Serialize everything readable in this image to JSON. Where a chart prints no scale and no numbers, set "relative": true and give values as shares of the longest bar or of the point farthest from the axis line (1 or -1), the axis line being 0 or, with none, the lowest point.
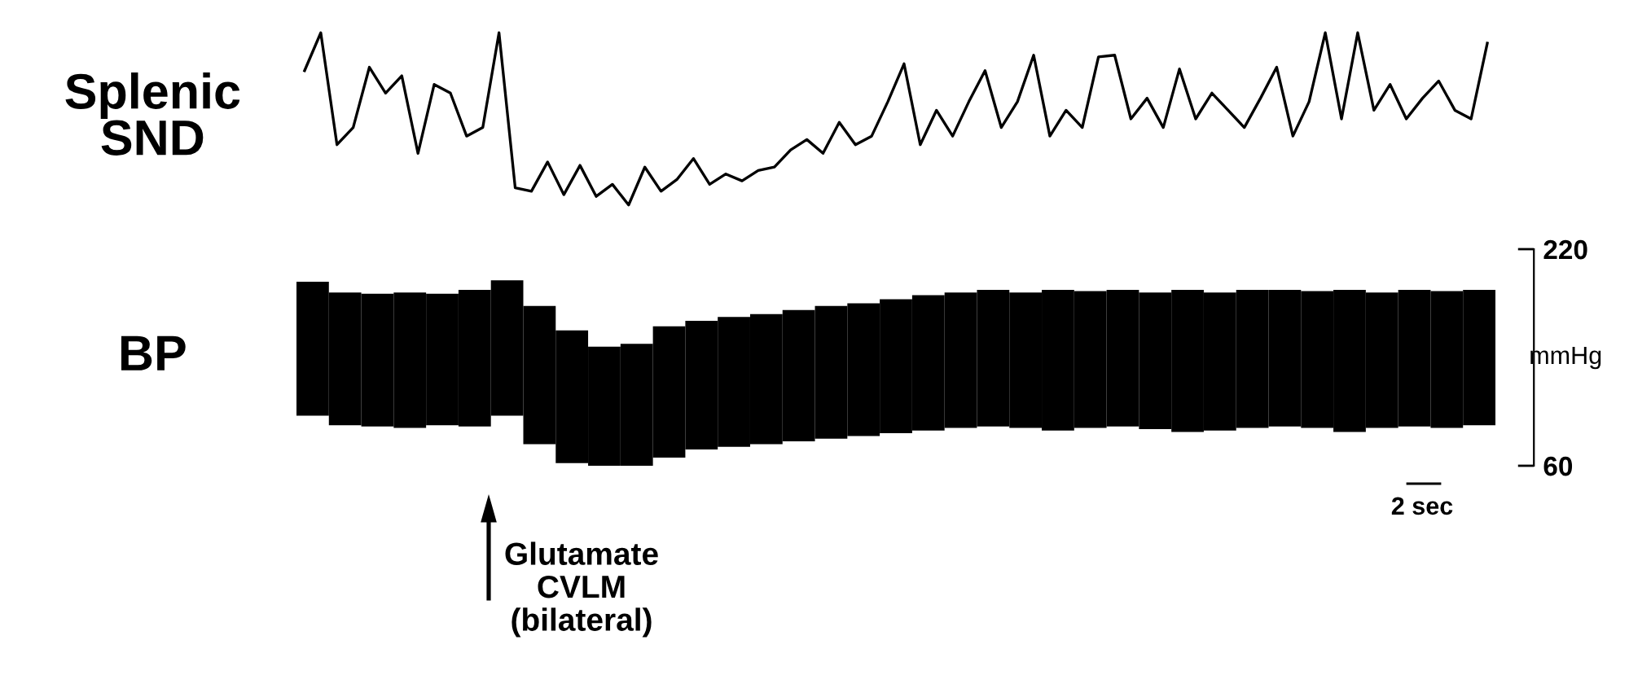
{
  "chart_data": [
    {
      "type": "line",
      "title": "Splenic\nSND",
      "relative": true,
      "tick_labels": false,
      "grid": false,
      "legend": false,
      "categories": [
        null,
        null,
        null,
        null,
        null,
        null,
        null,
        null,
        null,
        null,
        null,
        null,
        null,
        null,
        null,
        null,
        null,
        null,
        null,
        null,
        null,
        null,
        null,
        null,
        null,
        null,
        null,
        null,
        null,
        null,
        null,
        null,
        null,
        null,
        null,
        null,
        null,
        null,
        null,
        null,
        null,
        null,
        null,
        null,
        null,
        null,
        null,
        null,
        null,
        null,
        null,
        null,
        null,
        null,
        null,
        null,
        null,
        null,
        null,
        null,
        null,
        null,
        null,
        null,
        null,
        null,
        null,
        null,
        null,
        null,
        null,
        null,
        null,
        null
      ],
      "series": [
        {
          "color": "#000000",
          "values": [
            0.78,
            1.0,
            0.35,
            0.45,
            0.8,
            0.65,
            0.75,
            0.3,
            0.7,
            0.65,
            0.4,
            0.45,
            1.0,
            0.1,
            0.08,
            0.25,
            0.06,
            0.23,
            0.05,
            0.12,
            0.0,
            0.22,
            0.08,
            0.15,
            0.27,
            0.12,
            0.18,
            0.14,
            0.2,
            0.22,
            0.32,
            0.38,
            0.3,
            0.48,
            0.35,
            0.4,
            0.6,
            0.82,
            0.35,
            0.55,
            0.4,
            0.6,
            0.78,
            0.45,
            0.6,
            0.87,
            0.4,
            0.55,
            0.45,
            0.86,
            0.87,
            0.5,
            0.62,
            0.45,
            0.79,
            0.5,
            0.65,
            0.55,
            0.45,
            0.62,
            0.8,
            0.4,
            0.6,
            1.0,
            0.5,
            1.0,
            0.55,
            0.7,
            0.5,
            0.62,
            0.72,
            0.55,
            0.5,
            0.94
          ]
        }
      ]
    },
    {
      "type": "bar",
      "title": "BP",
      "ylabel": "mmHg",
      "ylim": [
        60,
        220
      ],
      "yticks": [
        60,
        220
      ],
      "tick_labels": "y",
      "grid": false,
      "legend": false,
      "annotations": [
        "2 sec",
        "Glutamate\nCVLM\n(bilateral)"
      ],
      "categories": [
        null,
        null,
        null,
        null,
        null,
        null,
        null,
        null,
        null,
        null,
        null,
        null,
        null,
        null,
        null,
        null,
        null,
        null,
        null,
        null,
        null,
        null,
        null,
        null,
        null,
        null,
        null,
        null,
        null,
        null,
        null,
        null,
        null,
        null,
        null,
        null,
        null
      ],
      "series": [
        {
          "color": "#000000",
          "values": [
            99,
            98,
            98,
            100,
            97,
            101,
            100,
            102,
            98,
            88,
            90,
            97,
            95,
            96,
            96,
            97,
            98,
            98,
            99,
            100,
            100,
            101,
            100,
            104,
            101,
            101,
            101,
            105,
            102,
            102,
            101,
            101,
            105,
            100,
            101,
            101,
            100
          ],
          "base": [
            97,
            90,
            89,
            88,
            90,
            89,
            97,
            76,
            62,
            60,
            60,
            66,
            72,
            74,
            76,
            78,
            80,
            82,
            84,
            86,
            88,
            89,
            88,
            86,
            88,
            89,
            87,
            85,
            86,
            88,
            89,
            88,
            85,
            88,
            89,
            88,
            90
          ]
        }
      ]
    }
  ]
}
